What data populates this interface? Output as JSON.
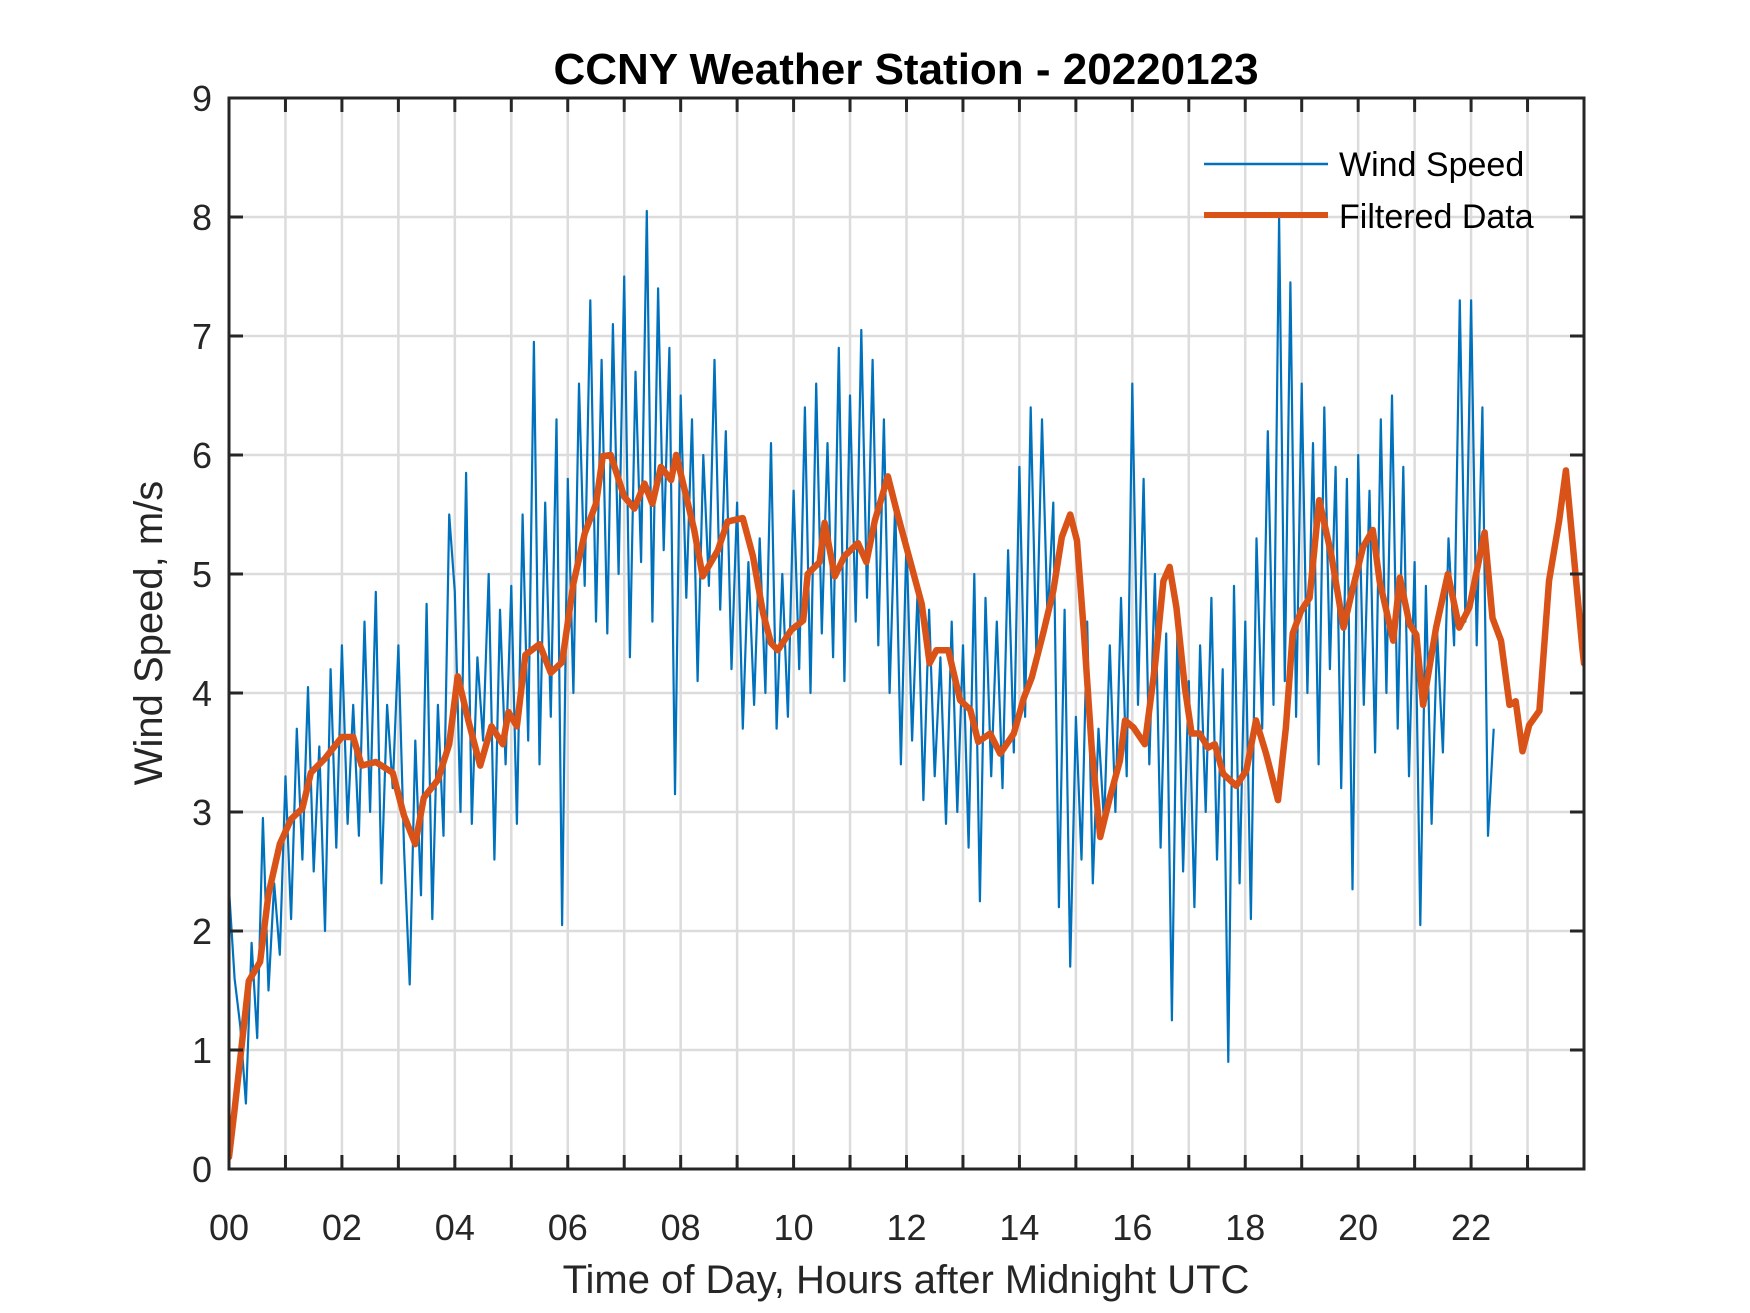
{
  "chart_data": {
    "type": "line",
    "title": "CCNY Weather Station - 20220123",
    "xlabel": "Time of Day, Hours after Midnight UTC",
    "ylabel": "Wind Speed, m/s",
    "xlim": [
      0,
      24
    ],
    "ylim": [
      0,
      9
    ],
    "grid": true,
    "legend_position": "top-right",
    "x_ticks": [
      0,
      2,
      4,
      6,
      8,
      10,
      12,
      14,
      16,
      18,
      20,
      22
    ],
    "x_tick_labels": [
      "00",
      "02",
      "04",
      "06",
      "08",
      "10",
      "12",
      "14",
      "16",
      "18",
      "20",
      "22"
    ],
    "x_minor_grid_step_hours": 1,
    "y_ticks": [
      0,
      1,
      2,
      3,
      4,
      5,
      6,
      7,
      8,
      9
    ],
    "y_tick_labels": [
      "0",
      "1",
      "2",
      "3",
      "4",
      "5",
      "6",
      "7",
      "8",
      "9"
    ],
    "series": [
      {
        "name": "Wind Speed",
        "color": "#0072bd",
        "x_start": 0,
        "x_step": 0.1,
        "values": [
          2.35,
          1.6,
          1.2,
          0.55,
          1.9,
          1.1,
          2.95,
          1.5,
          2.4,
          1.8,
          3.3,
          2.1,
          3.7,
          2.6,
          4.05,
          2.5,
          3.55,
          2.0,
          4.2,
          2.7,
          4.4,
          2.9,
          3.9,
          2.8,
          4.6,
          3.0,
          4.85,
          2.4,
          3.9,
          3.2,
          4.4,
          2.7,
          1.55,
          3.6,
          2.3,
          4.75,
          2.1,
          3.9,
          2.8,
          5.5,
          4.85,
          3.0,
          5.85,
          2.9,
          4.3,
          3.6,
          5.0,
          2.6,
          4.7,
          3.4,
          4.9,
          2.9,
          5.5,
          3.6,
          6.95,
          3.4,
          5.6,
          3.8,
          6.3,
          2.05,
          5.8,
          4.0,
          6.6,
          4.9,
          7.3,
          4.6,
          6.8,
          4.5,
          7.1,
          5.0,
          7.5,
          4.3,
          6.7,
          5.1,
          8.05,
          4.6,
          7.4,
          5.2,
          6.9,
          3.15,
          6.5,
          4.8,
          6.3,
          4.1,
          6.0,
          4.9,
          6.8,
          4.7,
          6.2,
          4.2,
          5.6,
          3.7,
          5.1,
          3.9,
          5.3,
          4.0,
          6.1,
          3.7,
          5.0,
          3.8,
          5.7,
          4.2,
          6.4,
          4.0,
          6.6,
          4.5,
          6.1,
          4.3,
          6.9,
          4.1,
          6.5,
          4.6,
          7.05,
          4.8,
          6.8,
          4.4,
          6.3,
          4.0,
          5.6,
          3.4,
          5.3,
          3.6,
          4.9,
          3.1,
          4.7,
          3.3,
          4.3,
          2.9,
          4.6,
          3.0,
          4.4,
          2.7,
          5.0,
          2.25,
          4.8,
          3.3,
          4.6,
          3.2,
          5.2,
          3.5,
          5.9,
          3.8,
          6.4,
          4.3,
          6.3,
          4.6,
          5.6,
          2.2,
          4.7,
          1.7,
          3.8,
          2.6,
          4.6,
          2.4,
          3.7,
          2.9,
          4.4,
          3.0,
          4.8,
          3.3,
          6.6,
          3.9,
          5.8,
          3.4,
          5.0,
          2.7,
          4.5,
          1.25,
          4.6,
          2.5,
          4.1,
          2.2,
          4.4,
          3.0,
          4.8,
          2.6,
          4.2,
          0.9,
          4.9,
          2.4,
          4.6,
          2.1,
          5.3,
          3.7,
          6.2,
          3.9,
          8.0,
          4.1,
          7.45,
          3.8,
          6.6,
          4.0,
          6.1,
          3.4,
          6.4,
          4.2,
          5.9,
          3.2,
          5.8,
          2.35,
          6.0,
          3.9,
          5.7,
          3.5,
          6.3,
          4.0,
          6.5,
          3.7,
          5.9,
          3.3,
          5.1,
          2.05,
          4.9,
          2.9,
          4.5,
          3.5,
          5.3,
          4.4,
          7.3,
          4.6,
          7.3,
          4.4,
          6.4,
          2.8,
          3.7
        ]
      },
      {
        "name": "Filtered Data",
        "color": "#d95319",
        "points": [
          [
            0.0,
            0.1
          ],
          [
            0.1,
            0.5
          ],
          [
            0.2,
            0.93
          ],
          [
            0.35,
            1.58
          ],
          [
            0.55,
            1.74
          ],
          [
            0.7,
            2.31
          ],
          [
            0.9,
            2.73
          ],
          [
            1.1,
            2.94
          ],
          [
            1.3,
            3.03
          ],
          [
            1.45,
            3.33
          ],
          [
            1.7,
            3.45
          ],
          [
            2.0,
            3.63
          ],
          [
            2.2,
            3.63
          ],
          [
            2.35,
            3.39
          ],
          [
            2.6,
            3.42
          ],
          [
            2.9,
            3.33
          ],
          [
            3.1,
            2.97
          ],
          [
            3.3,
            2.73
          ],
          [
            3.45,
            3.12
          ],
          [
            3.7,
            3.27
          ],
          [
            3.9,
            3.57
          ],
          [
            4.05,
            4.14
          ],
          [
            4.25,
            3.75
          ],
          [
            4.45,
            3.39
          ],
          [
            4.65,
            3.72
          ],
          [
            4.85,
            3.57
          ],
          [
            4.95,
            3.84
          ],
          [
            5.1,
            3.72
          ],
          [
            5.25,
            4.32
          ],
          [
            5.5,
            4.41
          ],
          [
            5.7,
            4.17
          ],
          [
            5.9,
            4.26
          ],
          [
            6.1,
            4.92
          ],
          [
            6.3,
            5.34
          ],
          [
            6.5,
            5.59
          ],
          [
            6.62,
            5.99
          ],
          [
            6.76,
            6.0
          ],
          [
            7.0,
            5.65
          ],
          [
            7.18,
            5.55
          ],
          [
            7.36,
            5.76
          ],
          [
            7.5,
            5.59
          ],
          [
            7.65,
            5.9
          ],
          [
            7.83,
            5.79
          ],
          [
            7.92,
            6.0
          ],
          [
            8.07,
            5.71
          ],
          [
            8.24,
            5.37
          ],
          [
            8.39,
            4.98
          ],
          [
            8.66,
            5.2
          ],
          [
            8.83,
            5.44
          ],
          [
            9.1,
            5.47
          ],
          [
            9.28,
            5.15
          ],
          [
            9.46,
            4.67
          ],
          [
            9.6,
            4.42
          ],
          [
            9.72,
            4.36
          ],
          [
            9.96,
            4.53
          ],
          [
            10.17,
            4.61
          ],
          [
            10.25,
            5.0
          ],
          [
            10.46,
            5.1
          ],
          [
            10.55,
            5.43
          ],
          [
            10.73,
            4.98
          ],
          [
            10.9,
            5.15
          ],
          [
            11.14,
            5.26
          ],
          [
            11.29,
            5.1
          ],
          [
            11.44,
            5.45
          ],
          [
            11.67,
            5.82
          ],
          [
            11.82,
            5.54
          ],
          [
            12.03,
            5.17
          ],
          [
            12.27,
            4.75
          ],
          [
            12.41,
            4.25
          ],
          [
            12.53,
            4.36
          ],
          [
            12.74,
            4.36
          ],
          [
            12.95,
            3.94
          ],
          [
            13.13,
            3.86
          ],
          [
            13.27,
            3.59
          ],
          [
            13.48,
            3.66
          ],
          [
            13.66,
            3.49
          ],
          [
            13.9,
            3.66
          ],
          [
            14.08,
            3.96
          ],
          [
            14.22,
            4.13
          ],
          [
            14.43,
            4.52
          ],
          [
            14.6,
            4.86
          ],
          [
            14.75,
            5.31
          ],
          [
            14.9,
            5.5
          ],
          [
            15.02,
            5.28
          ],
          [
            15.14,
            4.52
          ],
          [
            15.28,
            3.54
          ],
          [
            15.43,
            2.79
          ],
          [
            15.6,
            3.12
          ],
          [
            15.78,
            3.43
          ],
          [
            15.87,
            3.77
          ],
          [
            16.02,
            3.71
          ],
          [
            16.22,
            3.57
          ],
          [
            16.4,
            4.22
          ],
          [
            16.55,
            4.94
          ],
          [
            16.66,
            5.06
          ],
          [
            16.78,
            4.72
          ],
          [
            16.93,
            4.05
          ],
          [
            17.05,
            3.66
          ],
          [
            17.19,
            3.66
          ],
          [
            17.34,
            3.54
          ],
          [
            17.46,
            3.57
          ],
          [
            17.61,
            3.32
          ],
          [
            17.84,
            3.22
          ],
          [
            18.02,
            3.35
          ],
          [
            18.19,
            3.77
          ],
          [
            18.37,
            3.49
          ],
          [
            18.58,
            3.1
          ],
          [
            18.72,
            3.71
          ],
          [
            18.84,
            4.5
          ],
          [
            18.99,
            4.69
          ],
          [
            19.14,
            4.8
          ],
          [
            19.31,
            5.62
          ],
          [
            19.52,
            5.17
          ],
          [
            19.74,
            4.55
          ],
          [
            19.91,
            4.89
          ],
          [
            20.09,
            5.23
          ],
          [
            20.26,
            5.37
          ],
          [
            20.38,
            4.94
          ],
          [
            20.62,
            4.44
          ],
          [
            20.74,
            4.97
          ],
          [
            20.91,
            4.58
          ],
          [
            21.03,
            4.49
          ],
          [
            21.15,
            3.9
          ],
          [
            21.38,
            4.55
          ],
          [
            21.59,
            5.0
          ],
          [
            21.79,
            4.55
          ],
          [
            21.97,
            4.72
          ],
          [
            22.24,
            5.35
          ],
          [
            22.38,
            4.63
          ],
          [
            22.53,
            4.44
          ],
          [
            22.68,
            3.9
          ],
          [
            22.79,
            3.93
          ],
          [
            22.91,
            3.51
          ],
          [
            23.03,
            3.73
          ],
          [
            23.21,
            3.85
          ],
          [
            23.38,
            4.94
          ],
          [
            23.56,
            5.45
          ],
          [
            23.68,
            5.87
          ],
          [
            23.79,
            5.31
          ],
          [
            23.97,
            4.38
          ],
          [
            24.0,
            4.25
          ]
        ]
      }
    ]
  }
}
